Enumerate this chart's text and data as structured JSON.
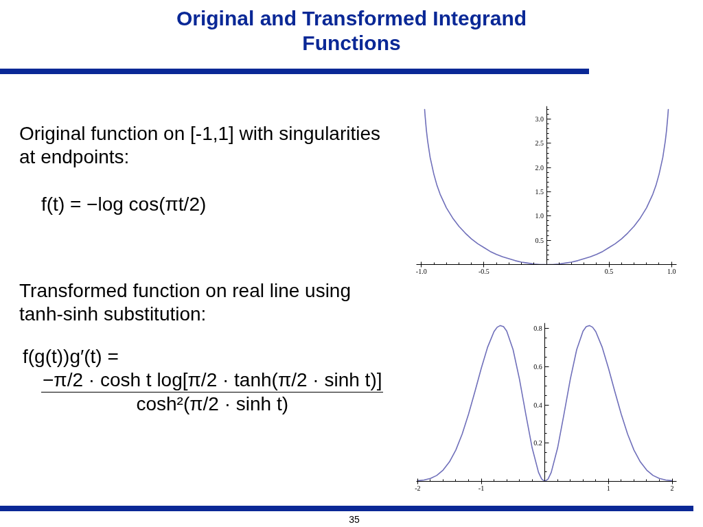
{
  "chart_data": [
    {
      "type": "line",
      "title": "Original and Transformed Integrand Functions",
      "annotations": [
        "Original function on [-1,1] with singularities at endpoints:",
        "f(t) = −log cos(πt/2)"
      ],
      "x": [
        -0.974,
        -0.97,
        -0.96,
        -0.95,
        -0.93,
        -0.9,
        -0.875,
        -0.85,
        -0.8,
        -0.75,
        -0.7,
        -0.65,
        -0.6,
        -0.55,
        -0.5,
        -0.45,
        -0.4,
        -0.35,
        -0.3,
        -0.25,
        -0.2,
        -0.15,
        -0.1,
        -0.05,
        0,
        0.05,
        0.1,
        0.15,
        0.2,
        0.25,
        0.3,
        0.35,
        0.4,
        0.45,
        0.5,
        0.55,
        0.6,
        0.65,
        0.7,
        0.75,
        0.8,
        0.85,
        0.875,
        0.9,
        0.93,
        0.95,
        0.96,
        0.97,
        0.974
      ],
      "series": [
        {
          "color": "#6f6fba",
          "values": [
            3.2,
            3.06,
            2.77,
            2.55,
            2.21,
            1.86,
            1.63,
            1.45,
            1.17,
            0.96,
            0.79,
            0.65,
            0.53,
            0.43,
            0.35,
            0.27,
            0.21,
            0.16,
            0.12,
            0.08,
            0.05,
            0.03,
            0.01,
            0.0,
            0,
            0.0,
            0.01,
            0.03,
            0.05,
            0.08,
            0.12,
            0.16,
            0.21,
            0.27,
            0.35,
            0.43,
            0.53,
            0.65,
            0.79,
            0.96,
            1.17,
            1.45,
            1.63,
            1.86,
            2.21,
            2.55,
            2.77,
            3.06,
            3.2
          ]
        }
      ],
      "xlim": [
        -1.04,
        1.04
      ],
      "ylim": [
        0,
        3.27
      ],
      "xticks": [
        {
          "value": -1,
          "label": "-1.0"
        },
        -0.5,
        0.5,
        {
          "value": 1,
          "label": "1.0"
        },
        {
          "value": -0.9,
          "label": null
        },
        {
          "value": -0.8,
          "label": null
        },
        {
          "value": -0.7,
          "label": null
        },
        {
          "value": -0.6,
          "label": null
        },
        {
          "value": -0.4,
          "label": null
        },
        {
          "value": -0.3,
          "label": null
        },
        {
          "value": -0.2,
          "label": null
        },
        {
          "value": -0.1,
          "label": null
        },
        {
          "value": 0.1,
          "label": null
        },
        {
          "value": 0.2,
          "label": null
        },
        {
          "value": 0.3,
          "label": null
        },
        {
          "value": 0.4,
          "label": null
        },
        {
          "value": 0.6,
          "label": null
        },
        {
          "value": 0.7,
          "label": null
        },
        {
          "value": 0.8,
          "label": null
        },
        {
          "value": 0.9,
          "label": null
        }
      ],
      "yticks": [
        0.5,
        {
          "value": 1,
          "label": "1.0"
        },
        1.5,
        {
          "value": 2,
          "label": "2.0"
        },
        2.5,
        {
          "value": 3,
          "label": "3.0"
        },
        {
          "value": 0.1,
          "label": null
        },
        {
          "value": 0.2,
          "label": null
        },
        {
          "value": 0.3,
          "label": null
        },
        {
          "value": 0.4,
          "label": null
        },
        {
          "value": 0.6,
          "label": null
        },
        {
          "value": 0.7,
          "label": null
        },
        {
          "value": 0.8,
          "label": null
        },
        {
          "value": 0.9,
          "label": null
        },
        {
          "value": 1.1,
          "label": null
        },
        {
          "value": 1.2,
          "label": null
        },
        {
          "value": 1.3,
          "label": null
        },
        {
          "value": 1.4,
          "label": null
        },
        {
          "value": 1.6,
          "label": null
        },
        {
          "value": 1.7,
          "label": null
        },
        {
          "value": 1.8,
          "label": null
        },
        {
          "value": 1.9,
          "label": null
        },
        {
          "value": 2.1,
          "label": null
        },
        {
          "value": 2.2,
          "label": null
        },
        {
          "value": 2.3,
          "label": null
        },
        {
          "value": 2.4,
          "label": null
        },
        {
          "value": 2.6,
          "label": null
        },
        {
          "value": 2.7,
          "label": null
        },
        {
          "value": 2.8,
          "label": null
        },
        {
          "value": 2.9,
          "label": null
        },
        {
          "value": 3.1,
          "label": null
        },
        {
          "value": 3.2,
          "label": null
        }
      ]
    },
    {
      "type": "line",
      "annotations": [
        "Transformed function on real line using tanh-sinh substitution:",
        "f(g(t))g′(t) =",
        "−π/2 · cosh t log[π/2 · tanh(π/2 · sinh t)]",
        "cosh²(π/2 · sinh t)",
        "35"
      ],
      "x": [
        -2,
        -1.9,
        -1.8,
        -1.7,
        -1.6,
        -1.5,
        -1.4,
        -1.3,
        -1.2,
        -1.1,
        -1,
        -0.9,
        -0.8,
        -0.75,
        -0.7,
        -0.65,
        -0.6,
        -0.5,
        -0.4,
        -0.3,
        -0.2,
        -0.1,
        -0.05,
        0,
        0.05,
        0.1,
        0.2,
        0.3,
        0.4,
        0.5,
        0.6,
        0.65,
        0.7,
        0.75,
        0.8,
        0.9,
        1,
        1.1,
        1.2,
        1.3,
        1.4,
        1.5,
        1.6,
        1.7,
        1.8,
        1.9,
        2
      ],
      "series": [
        {
          "color": "#6f6fba",
          "values": [
            0.003,
            0.007,
            0.015,
            0.031,
            0.059,
            0.102,
            0.164,
            0.248,
            0.352,
            0.47,
            0.592,
            0.703,
            0.784,
            0.807,
            0.816,
            0.81,
            0.787,
            0.69,
            0.536,
            0.352,
            0.175,
            0.047,
            0.012,
            0,
            0.012,
            0.047,
            0.175,
            0.352,
            0.536,
            0.69,
            0.787,
            0.81,
            0.816,
            0.807,
            0.784,
            0.703,
            0.592,
            0.47,
            0.352,
            0.248,
            0.164,
            0.102,
            0.059,
            0.031,
            0.015,
            0.007,
            0.003
          ]
        }
      ],
      "xlim": [
        -2.02,
        2.07
      ],
      "ylim": [
        0,
        0.83
      ],
      "xticks": [
        -2,
        -1,
        1,
        2,
        {
          "value": -1.8,
          "label": null
        },
        {
          "value": -1.6,
          "label": null
        },
        {
          "value": -1.4,
          "label": null
        },
        {
          "value": -1.2,
          "label": null
        },
        {
          "value": -0.8,
          "label": null
        },
        {
          "value": -0.6,
          "label": null
        },
        {
          "value": -0.4,
          "label": null
        },
        {
          "value": -0.2,
          "label": null
        },
        {
          "value": 0.2,
          "label": null
        },
        {
          "value": 0.4,
          "label": null
        },
        {
          "value": 0.6,
          "label": null
        },
        {
          "value": 0.8,
          "label": null
        },
        {
          "value": 1.2,
          "label": null
        },
        {
          "value": 1.4,
          "label": null
        },
        {
          "value": 1.6,
          "label": null
        },
        {
          "value": 1.8,
          "label": null
        }
      ],
      "yticks": [
        0.2,
        0.4,
        0.6,
        0.8,
        {
          "value": 0.05,
          "label": null
        },
        {
          "value": 0.1,
          "label": null
        },
        {
          "value": 0.15,
          "label": null
        },
        {
          "value": 0.25,
          "label": null
        },
        {
          "value": 0.3,
          "label": null
        },
        {
          "value": 0.35,
          "label": null
        },
        {
          "value": 0.45,
          "label": null
        },
        {
          "value": 0.5,
          "label": null
        },
        {
          "value": 0.55,
          "label": null
        },
        {
          "value": 0.65,
          "label": null
        },
        {
          "value": 0.7,
          "label": null
        },
        {
          "value": 0.75,
          "label": null
        }
      ]
    }
  ]
}
